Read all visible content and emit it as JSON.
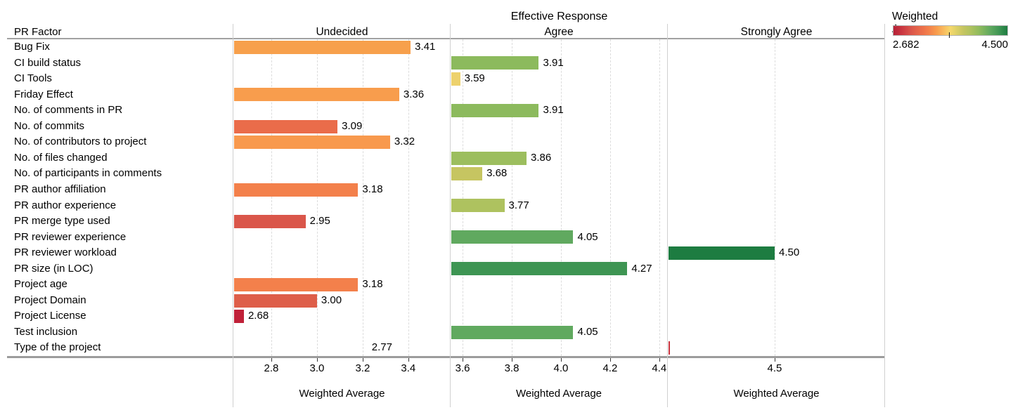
{
  "chart_data": {
    "type": "bar",
    "title": "Effective Response",
    "row_header": "PR Factor",
    "xlabel": "Weighted Average",
    "legend": {
      "title": "Weighted Average",
      "min_label": "2.682",
      "max_label": "4.500",
      "min_color": "#b52137",
      "max_color": "#1d7c41",
      "tick_fraction": 0.49
    },
    "facets": [
      {
        "name": "Undecided",
        "axis_min": 2.637,
        "axis_max": 3.582,
        "ticks": [
          2.8,
          3.0,
          3.2,
          3.4
        ],
        "tick_labels": [
          "2.8",
          "3.0",
          "3.2",
          "3.4"
        ],
        "axis_title": "Weighted Average"
      },
      {
        "name": "Agree",
        "axis_min": 3.554,
        "axis_max": 4.429,
        "ticks": [
          3.6,
          3.8,
          4.0,
          4.2,
          4.4
        ],
        "tick_labels": [
          "3.6",
          "3.8",
          "4.0",
          "4.2",
          "4.4"
        ],
        "axis_title": "Weighted Average"
      },
      {
        "name": "Strongly Agree",
        "axis_min": 4.049,
        "axis_max": 4.966,
        "ticks": [
          4.5
        ],
        "tick_labels": [
          "4.5"
        ],
        "axis_title": "Weighted Average"
      }
    ],
    "rows": [
      {
        "label": "Bug Fix",
        "facet": 0,
        "value": 3.41,
        "value_label": "3.41",
        "color": "#f7a04c"
      },
      {
        "label": "CI build status",
        "facet": 1,
        "value": 3.91,
        "value_label": "3.91",
        "color": "#8cba5d"
      },
      {
        "label": "CI Tools",
        "facet": 1,
        "value": 3.59,
        "value_label": "3.59",
        "color": "#edd16d"
      },
      {
        "label": "Friday Effect",
        "facet": 0,
        "value": 3.36,
        "value_label": "3.36",
        "color": "#f89d4d"
      },
      {
        "label": "No. of comments in PR",
        "facet": 1,
        "value": 3.91,
        "value_label": "3.91",
        "color": "#8cba5d"
      },
      {
        "label": "No. of commits",
        "facet": 0,
        "value": 3.09,
        "value_label": "3.09",
        "color": "#ea6c4a"
      },
      {
        "label": "No. of contributors to project",
        "facet": 0,
        "value": 3.32,
        "value_label": "3.32",
        "color": "#f8994d"
      },
      {
        "label": "No. of files changed",
        "facet": 1,
        "value": 3.86,
        "value_label": "3.86",
        "color": "#9cbe5e"
      },
      {
        "label": "No. of participants in comments",
        "facet": 1,
        "value": 3.68,
        "value_label": "3.68",
        "color": "#c6c561"
      },
      {
        "label": "PR author affiliation",
        "facet": 0,
        "value": 3.18,
        "value_label": "3.18",
        "color": "#f3804b"
      },
      {
        "label": "PR author experience",
        "facet": 1,
        "value": 3.77,
        "value_label": "3.77",
        "color": "#aec25f"
      },
      {
        "label": "PR merge type used",
        "facet": 0,
        "value": 2.95,
        "value_label": "2.95",
        "color": "#da564a"
      },
      {
        "label": "PR reviewer experience",
        "facet": 1,
        "value": 4.05,
        "value_label": "4.05",
        "color": "#60a95f"
      },
      {
        "label": "PR reviewer workload",
        "facet": 2,
        "value": 4.5,
        "value_label": "4.50",
        "color": "#1d7c41"
      },
      {
        "label": "PR size (in LOC)",
        "facet": 1,
        "value": 4.27,
        "value_label": "4.27",
        "color": "#3e9553"
      },
      {
        "label": "Project age",
        "facet": 0,
        "value": 3.18,
        "value_label": "3.18",
        "color": "#f3804b"
      },
      {
        "label": "Project Domain",
        "facet": 0,
        "value": 3.0,
        "value_label": "3.00",
        "color": "#de5e49"
      },
      {
        "label": "Project License",
        "facet": 0,
        "value": 2.68,
        "value_label": "2.68",
        "color": "#c02139"
      },
      {
        "label": "Test inclusion",
        "facet": 1,
        "value": 4.05,
        "value_label": "4.05",
        "color": "#60a95f"
      },
      {
        "label": "Type of the project",
        "facet": 2,
        "value": 2.77,
        "value_label": "2.77",
        "color": "#c93540"
      }
    ]
  }
}
